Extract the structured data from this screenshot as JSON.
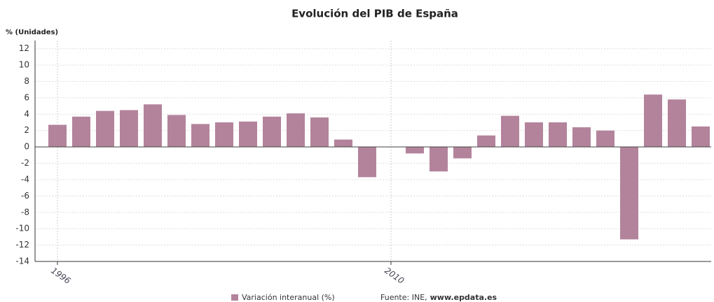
{
  "chart_data": {
    "type": "bar",
    "title": "Evolución del PIB de España",
    "y_axis_label": "% (Unidades)",
    "categories": [
      "1996",
      null,
      null,
      null,
      null,
      null,
      null,
      null,
      null,
      null,
      null,
      null,
      null,
      null,
      "2010",
      null,
      null,
      null,
      null,
      null,
      null,
      null,
      null,
      null,
      null,
      null,
      null,
      null
    ],
    "series": [
      {
        "name": "Variación interanual (%)",
        "color": "#b3839b",
        "values": [
          2.7,
          3.7,
          4.4,
          4.5,
          5.2,
          3.9,
          2.8,
          3.0,
          3.1,
          3.7,
          4.1,
          3.6,
          0.9,
          -3.7,
          0,
          -0.8,
          -3.0,
          -1.4,
          1.4,
          3.8,
          3.0,
          3.0,
          2.4,
          2.0,
          -11.3,
          6.4,
          5.8,
          2.5
        ]
      }
    ],
    "ylim": [
      -14,
      13
    ],
    "yticks": [
      -14,
      -12,
      -10,
      -8,
      -6,
      -4,
      -2,
      0,
      2,
      4,
      6,
      8,
      10,
      12
    ],
    "grid": true,
    "source": "Fuente: INE,",
    "source_site": "www.epdata.es"
  }
}
